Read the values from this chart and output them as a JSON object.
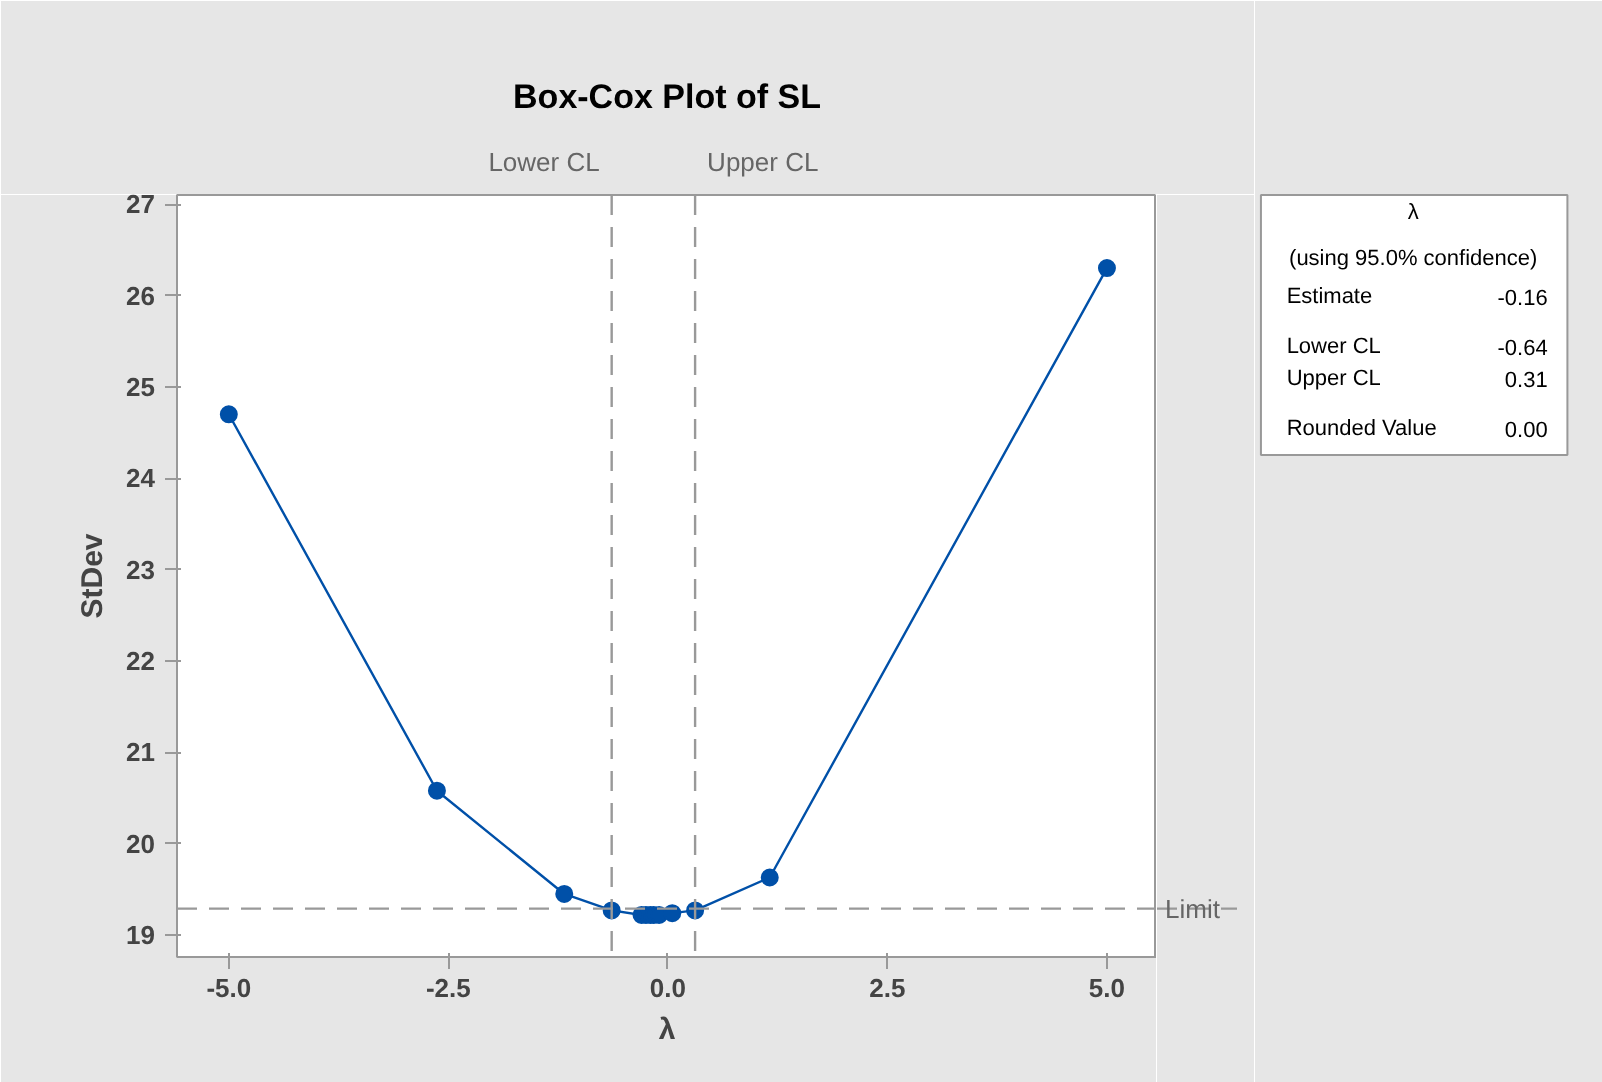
{
  "chart_data": {
    "type": "line",
    "title": "Box-Cox Plot of SL",
    "xlabel": "λ",
    "ylabel": "StDev",
    "x": [
      -5.0,
      -2.63,
      -1.18,
      -0.64,
      -0.3,
      -0.25,
      -0.2,
      -0.16,
      -0.1,
      0.05,
      0.31,
      1.16,
      5.0
    ],
    "series": [
      {
        "color": "#0050a8",
        "values": [
          24.7,
          20.58,
          19.45,
          19.27,
          19.22,
          19.22,
          19.22,
          19.22,
          19.22,
          19.24,
          19.27,
          19.63,
          26.3
        ]
      }
    ],
    "marker": "circle",
    "line_style": "solid",
    "grid": false,
    "xlim": [
      -5.59,
      5.57
    ],
    "ylim": [
      18.76,
      27.1
    ],
    "xticks": [
      {
        "value": -5,
        "label": "-5.0"
      },
      {
        "value": -2.5,
        "label": "-2.5"
      },
      {
        "value": 0,
        "label": "0.0"
      },
      {
        "value": 2.5,
        "label": "2.5"
      },
      {
        "value": 5,
        "label": "5.0"
      }
    ],
    "yticks": [
      19,
      20,
      21,
      22,
      23,
      24,
      25,
      26,
      27
    ],
    "ref_lines": [
      {
        "axis": "x",
        "value": -0.64,
        "label": "Lower CL",
        "color": "#999999",
        "line_style": "dashed"
      },
      {
        "axis": "x",
        "value": 0.31,
        "label": "Upper CL",
        "color": "#999999",
        "line_style": "dashed"
      },
      {
        "axis": "y",
        "value": 19.29,
        "label": "Limit",
        "color": "#999999",
        "line_style": "dashed"
      }
    ],
    "annotations": [
      "λ",
      "(using 95.0% confidence)",
      "Estimate",
      "-0.16",
      "Lower CL",
      "-0.64",
      "Upper CL",
      "0.31",
      "Rounded Value",
      "0.00"
    ]
  }
}
